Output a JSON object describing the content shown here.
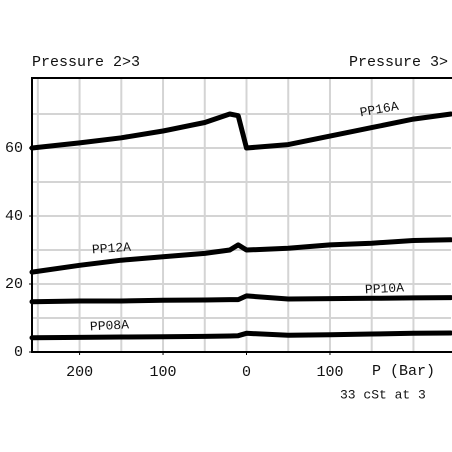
{
  "chart_data": {
    "type": "line",
    "left_label": "Pressure 2>3",
    "right_label": "Pressure 3>",
    "x_label": "P (Bar)",
    "note": "33 cSt at 3",
    "x": [
      -257,
      -200,
      -150,
      -100,
      -50,
      -20,
      -10,
      0,
      50,
      100,
      150,
      200,
      245
    ],
    "series": [
      {
        "name": "PP16A",
        "color": "#000000",
        "values": [
          60,
          61.5,
          63,
          65,
          67.5,
          70,
          69.5,
          60,
          61,
          63.5,
          66,
          68.5,
          70
        ]
      },
      {
        "name": "PP12A",
        "color": "#000000",
        "values": [
          23.5,
          25.5,
          27,
          28,
          29,
          30,
          31.5,
          30,
          30.5,
          31.5,
          32,
          32.8,
          33
        ]
      },
      {
        "name": "PP10A",
        "color": "#000000",
        "values": [
          14.8,
          15,
          15,
          15.2,
          15.3,
          15.4,
          15.4,
          16.5,
          15.6,
          15.7,
          15.8,
          15.9,
          16
        ]
      },
      {
        "name": "PP08A",
        "color": "#000000",
        "values": [
          4.2,
          4.3,
          4.4,
          4.5,
          4.6,
          4.7,
          4.8,
          5.5,
          4.9,
          5.1,
          5.3,
          5.5,
          5.6
        ]
      }
    ],
    "xlim": [
      -257,
      245
    ],
    "ylim": [
      0,
      80.6
    ],
    "xticks": [
      {
        "value": -200,
        "label": "200"
      },
      {
        "value": -100,
        "label": "100"
      },
      0,
      {
        "value": 100,
        "label": "100"
      }
    ],
    "yticks": [
      0,
      20,
      40,
      60
    ],
    "xgrid": [
      -250,
      -200,
      -150,
      -100,
      -50,
      0,
      50,
      100,
      150,
      200
    ],
    "ygrid": [
      10,
      20,
      30,
      40,
      50,
      60,
      70
    ],
    "grid": true
  }
}
